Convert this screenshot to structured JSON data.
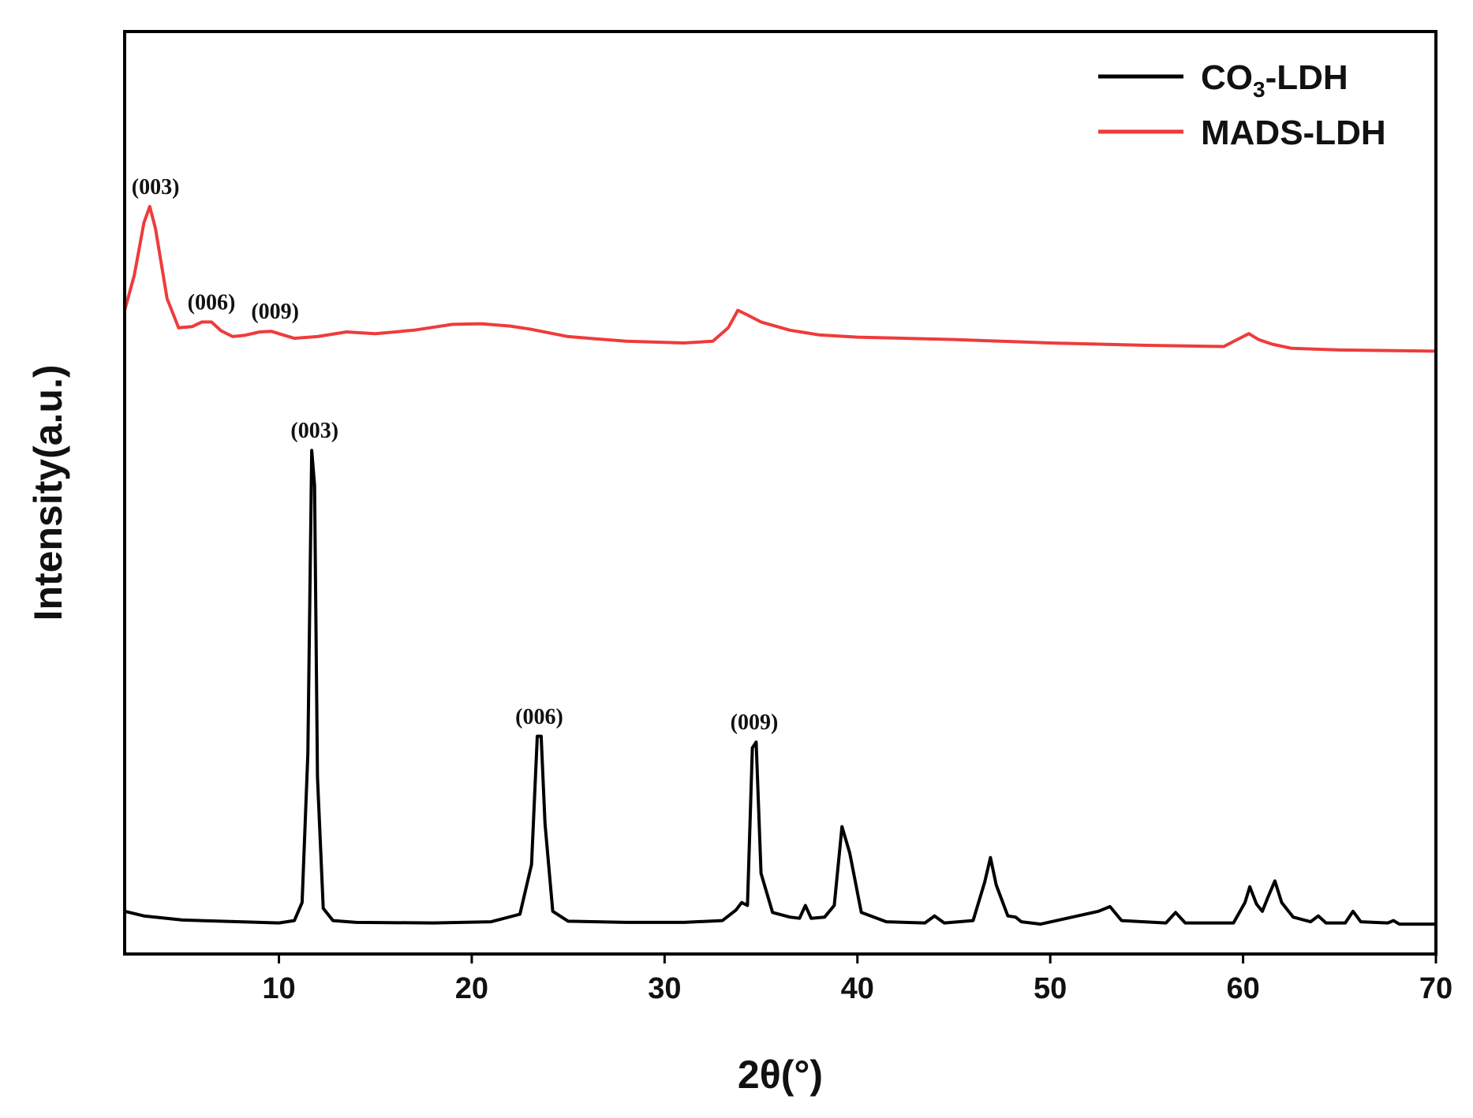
{
  "chart_data": {
    "type": "line",
    "xlabel": "2θ(°)",
    "ylabel": "Intensity(a.u.)",
    "xlim": [
      2,
      70
    ],
    "x_ticks": [
      10,
      20,
      30,
      40,
      50,
      60,
      70
    ],
    "y_ticks_shown": false,
    "grid": false,
    "legend_position": "top-right",
    "series": [
      {
        "name": "CO3-LDH",
        "legend_main": "CO",
        "legend_sub": "3",
        "legend_rest": "-LDH",
        "color": "#000000",
        "x": [
          2.0,
          3.0,
          5.0,
          8.0,
          10.0,
          10.8,
          11.2,
          11.5,
          11.7,
          11.85,
          12.0,
          12.3,
          12.8,
          14.0,
          18.0,
          21.0,
          22.5,
          23.1,
          23.4,
          23.6,
          23.8,
          24.2,
          25.0,
          28.0,
          31.0,
          33.0,
          33.7,
          34.0,
          34.3,
          34.55,
          34.75,
          35.0,
          35.6,
          36.5,
          37.0,
          37.3,
          37.6,
          38.3,
          38.8,
          39.2,
          39.6,
          40.2,
          41.5,
          43.5,
          44.0,
          44.5,
          46.0,
          46.6,
          46.9,
          47.2,
          47.8,
          48.2,
          48.5,
          49.5,
          52.5,
          53.1,
          53.7,
          56.0,
          56.5,
          57.0,
          59.5,
          60.1,
          60.35,
          60.7,
          61.0,
          61.3,
          61.65,
          62.0,
          62.6,
          63.5,
          63.9,
          64.3,
          65.3,
          65.7,
          66.1,
          67.5,
          67.8,
          68.1,
          70.0
        ],
        "y": [
          30,
          22,
          15,
          12,
          10,
          14,
          45,
          300,
          820,
          760,
          260,
          35,
          14,
          11,
          10,
          12,
          25,
          110,
          330,
          330,
          180,
          30,
          13,
          11,
          11,
          14,
          32,
          45,
          40,
          310,
          320,
          95,
          28,
          20,
          18,
          40,
          18,
          20,
          40,
          175,
          130,
          28,
          12,
          10,
          22,
          10,
          14,
          80,
          122,
          75,
          22,
          20,
          12,
          8,
          30,
          38,
          14,
          10,
          28,
          10,
          10,
          45,
          72,
          42,
          30,
          55,
          82,
          45,
          20,
          12,
          22,
          10,
          10,
          30,
          12,
          10,
          14,
          8,
          8
        ]
      },
      {
        "name": "MADS-LDH",
        "color": "#ef3b3b",
        "x": [
          2.0,
          2.5,
          3.0,
          3.3,
          3.6,
          4.2,
          4.8,
          5.5,
          6.0,
          6.5,
          7.0,
          7.6,
          8.2,
          9.0,
          9.6,
          10.2,
          10.8,
          12.0,
          13.5,
          15.0,
          17.0,
          19.0,
          20.5,
          22.0,
          23.0,
          25.0,
          28.0,
          31.0,
          32.5,
          33.3,
          33.8,
          34.3,
          35.0,
          36.5,
          38.0,
          40.0,
          45.0,
          50.0,
          55.0,
          59.0,
          59.7,
          60.3,
          60.8,
          61.5,
          62.5,
          65.0,
          70.0
        ],
        "y": [
          1060,
          1120,
          1210,
          1238,
          1200,
          1080,
          1030,
          1032,
          1040,
          1040,
          1025,
          1015,
          1017,
          1023,
          1024,
          1018,
          1012,
          1015,
          1023,
          1020,
          1026,
          1036,
          1037,
          1033,
          1028,
          1015,
          1007,
          1004,
          1007,
          1030,
          1060,
          1052,
          1040,
          1026,
          1018,
          1014,
          1010,
          1004,
          1000,
          998,
          1010,
          1020,
          1010,
          1002,
          995,
          992,
          990
        ]
      }
    ],
    "annotations": [
      {
        "text": "(003)",
        "x": 11.85,
        "y": 820,
        "series": "CO3-LDH"
      },
      {
        "text": "(006)",
        "x": 23.5,
        "y": 330,
        "series": "CO3-LDH"
      },
      {
        "text": "(009)",
        "x": 34.65,
        "y": 320,
        "series": "CO3-LDH"
      },
      {
        "text": "(003)",
        "x": 3.6,
        "y": 1238,
        "series": "MADS-LDH"
      },
      {
        "text": "(006)",
        "x": 6.5,
        "y": 1040,
        "series": "MADS-LDH"
      },
      {
        "text": "(009)",
        "x": 9.8,
        "y": 1024,
        "series": "MADS-LDH"
      }
    ]
  }
}
